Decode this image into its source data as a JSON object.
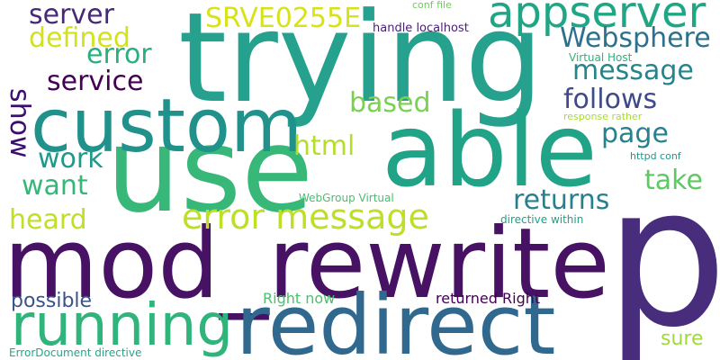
{
  "words": {
    "p": {
      "text": "p",
      "color": "#472d7b"
    },
    "trying": {
      "text": "trying",
      "color": "#25a18e"
    },
    "use": {
      "text": "use",
      "color": "#37b878"
    },
    "able": {
      "text": "able",
      "color": "#20a386"
    },
    "custom": {
      "text": "custom",
      "color": "#21918c"
    },
    "mod_rewrite": {
      "text": "mod_rewrite",
      "color": "#471164"
    },
    "redirect": {
      "text": "redirect",
      "color": "#31688e"
    },
    "running": {
      "text": "running",
      "color": "#2fb47c"
    },
    "appserver": {
      "text": "appserver",
      "color": "#21a685"
    },
    "error_message": {
      "text": "error message",
      "color": "#bddf26"
    },
    "srve": {
      "text": "SRVE0255E",
      "color": "#d8e219"
    },
    "websphere": {
      "text": "Websphere",
      "color": "#2c728e"
    },
    "server": {
      "text": "server",
      "color": "#482878"
    },
    "defined": {
      "text": "defined",
      "color": "#d2e21b"
    },
    "error": {
      "text": "error",
      "color": "#29af7f"
    },
    "service": {
      "text": "service",
      "color": "#440154"
    },
    "message": {
      "text": "message",
      "color": "#25858e"
    },
    "follows": {
      "text": "follows",
      "color": "#3e4a89"
    },
    "based": {
      "text": "based",
      "color": "#7ad151"
    },
    "page": {
      "text": "page",
      "color": "#26828e"
    },
    "show": {
      "text": "show",
      "color": "#3b0f70"
    },
    "html": {
      "text": "html",
      "color": "#b5de2b"
    },
    "work": {
      "text": "work",
      "color": "#1f9a8a"
    },
    "want": {
      "text": "want",
      "color": "#35b779"
    },
    "take": {
      "text": "take",
      "color": "#5ec962"
    },
    "returns": {
      "text": "returns",
      "color": "#27808e"
    },
    "heard": {
      "text": "heard",
      "color": "#c0df25"
    },
    "possible": {
      "text": "possible",
      "color": "#3b528b"
    },
    "right_now": {
      "text": "Right now",
      "color": "#4ac16d"
    },
    "returned_right": {
      "text": "returned Right",
      "color": "#440154"
    },
    "sure": {
      "text": "sure",
      "color": "#a0da39"
    },
    "errordocument": {
      "text": "ErrorDocument directive",
      "color": "#22a785"
    },
    "conf_file": {
      "text": "conf file",
      "color": "#6ccd5a"
    },
    "handle_localhost": {
      "text": "handle localhost",
      "color": "#482173"
    },
    "virtual_host": {
      "text": "Virtual Host",
      "color": "#2db27d"
    },
    "response_rather": {
      "text": "response rather",
      "color": "#a8db34"
    },
    "httpd_conf": {
      "text": "httpd conf",
      "color": "#1f968b"
    },
    "webgroup_virtual": {
      "text": "WebGroup Virtual",
      "color": "#44bf70"
    },
    "directive_within": {
      "text": "directive within",
      "color": "#1fa088"
    }
  }
}
